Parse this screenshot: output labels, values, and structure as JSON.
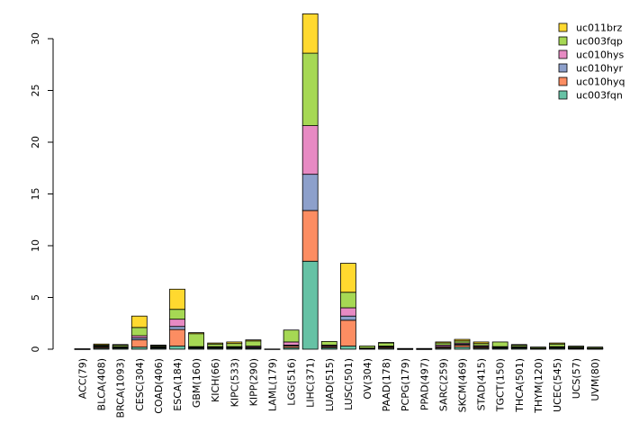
{
  "chart_data": {
    "type": "bar",
    "stacked": true,
    "title": "",
    "xlabel": "",
    "ylabel": "",
    "ylim": [
      0,
      32.5
    ],
    "yticks": [
      0,
      5,
      10,
      15,
      20,
      25,
      30
    ],
    "legend_position": "top-right",
    "categories": [
      "ACC(79)",
      "BLCA(408)",
      "BRCA(1093)",
      "CESC(304)",
      "COAD(406)",
      "ESCA(184)",
      "GBM(160)",
      "KICH(66)",
      "KIPC(533)",
      "KIPP(290)",
      "LAML(179)",
      "LGG(516)",
      "LIHC(371)",
      "LUAD(515)",
      "LUSC(501)",
      "OV(304)",
      "PAAD(178)",
      "PCPG(179)",
      "PPAD(497)",
      "SARC(259)",
      "SKCM(469)",
      "STAD(415)",
      "TGCT(150)",
      "THCA(501)",
      "THYM(120)",
      "UCEC(545)",
      "UCS(57)",
      "UVM(80)"
    ],
    "series": [
      {
        "name": "uc003fqn",
        "color": "#66c2a5",
        "values": [
          0.02,
          0.1,
          0.1,
          0.2,
          0.1,
          0.3,
          0.1,
          0.1,
          0.1,
          0.1,
          0.02,
          0.15,
          8.5,
          0.15,
          0.3,
          0.05,
          0.1,
          0.02,
          0.02,
          0.1,
          0.2,
          0.1,
          0.1,
          0.1,
          0.05,
          0.1,
          0.05,
          0.05
        ]
      },
      {
        "name": "uc010hyq",
        "color": "#fc8d62",
        "values": [
          0.0,
          0.1,
          0.05,
          0.7,
          0.05,
          1.6,
          0.05,
          0.05,
          0.05,
          0.05,
          0.0,
          0.15,
          4.9,
          0.1,
          2.5,
          0.02,
          0.1,
          0.0,
          0.0,
          0.1,
          0.2,
          0.1,
          0.05,
          0.05,
          0.02,
          0.05,
          0.05,
          0.02
        ]
      },
      {
        "name": "uc010hyr",
        "color": "#8da0cb",
        "values": [
          0.0,
          0.05,
          0.05,
          0.2,
          0.05,
          0.3,
          0.05,
          0.05,
          0.05,
          0.05,
          0.0,
          0.1,
          3.5,
          0.05,
          0.4,
          0.02,
          0.05,
          0.0,
          0.0,
          0.05,
          0.1,
          0.05,
          0.05,
          0.05,
          0.02,
          0.05,
          0.02,
          0.02
        ]
      },
      {
        "name": "uc010hys",
        "color": "#e78ac3",
        "values": [
          0.0,
          0.05,
          0.05,
          0.2,
          0.05,
          0.7,
          0.05,
          0.05,
          0.05,
          0.1,
          0.0,
          0.3,
          4.7,
          0.1,
          0.8,
          0.02,
          0.05,
          0.0,
          0.0,
          0.15,
          0.1,
          0.1,
          0.05,
          0.05,
          0.02,
          0.05,
          0.03,
          0.02
        ]
      },
      {
        "name": "uc003fqp",
        "color": "#a6d854",
        "values": [
          0.02,
          0.1,
          0.15,
          0.8,
          0.1,
          0.95,
          1.25,
          0.25,
          0.3,
          0.5,
          0.0,
          1.15,
          7.0,
          0.35,
          1.5,
          0.2,
          0.3,
          0.05,
          0.05,
          0.2,
          0.2,
          0.2,
          0.45,
          0.15,
          0.1,
          0.25,
          0.1,
          0.1
        ]
      },
      {
        "name": "uc011brz",
        "color": "#ffd92f",
        "values": [
          0.0,
          0.1,
          0.05,
          1.1,
          0.05,
          1.95,
          0.1,
          0.1,
          0.15,
          0.1,
          0.0,
          0.0,
          3.8,
          0.0,
          2.8,
          0.0,
          0.05,
          0.0,
          0.0,
          0.1,
          0.15,
          0.15,
          0.0,
          0.05,
          0.0,
          0.1,
          0.05,
          0.0
        ]
      }
    ]
  }
}
